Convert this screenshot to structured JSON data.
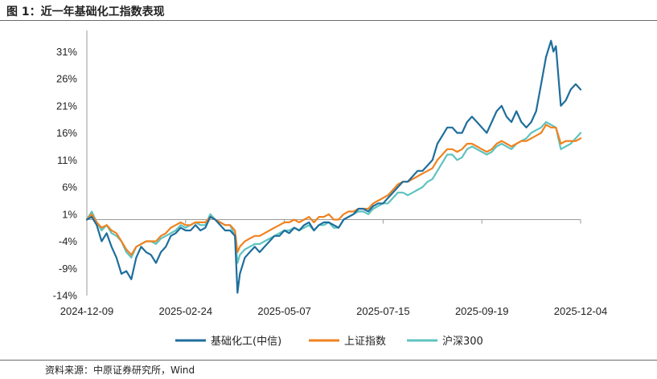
{
  "figure": {
    "title": "图 1：近一年基础化工指数表现",
    "source": "资料来源：中原证券研究所，Wind"
  },
  "chart_data": {
    "type": "line",
    "title": "近一年基础化工指数表现",
    "xlabel": "",
    "ylabel": "",
    "ylim": [
      -14,
      34
    ],
    "yticks": [
      -14,
      -9,
      -4,
      1,
      6,
      11,
      16,
      21,
      26,
      31
    ],
    "ytick_labels": [
      "-14%",
      "-9%",
      "-4%",
      "1%",
      "6%",
      "11%",
      "16%",
      "21%",
      "26%",
      "31%"
    ],
    "x_range": [
      0,
      100
    ],
    "xticks": [
      {
        "x": 0,
        "label": "2024-12-09"
      },
      {
        "x": 20,
        "label": "2025-02-24"
      },
      {
        "x": 40,
        "label": "2025-05-07"
      },
      {
        "x": 60,
        "label": "2025-07-15"
      },
      {
        "x": 80,
        "label": "2025-09-19"
      },
      {
        "x": 100,
        "label": "2025-12-04"
      }
    ],
    "legend_position": "bottom",
    "series": [
      {
        "name": "基础化工(中信)",
        "color": "#1f6e9c",
        "points": [
          [
            0,
            0
          ],
          [
            1,
            0.5
          ],
          [
            2,
            -1
          ],
          [
            3,
            -4
          ],
          [
            4,
            -2.5
          ],
          [
            5,
            -5
          ],
          [
            6,
            -7
          ],
          [
            7,
            -10
          ],
          [
            8,
            -9.5
          ],
          [
            9,
            -11
          ],
          [
            10,
            -7
          ],
          [
            11,
            -5
          ],
          [
            12,
            -6
          ],
          [
            13,
            -6.5
          ],
          [
            14,
            -8
          ],
          [
            15,
            -6
          ],
          [
            16,
            -5
          ],
          [
            17,
            -3
          ],
          [
            18,
            -2.5
          ],
          [
            19,
            -1.5
          ],
          [
            20,
            -2
          ],
          [
            21,
            -2
          ],
          [
            22,
            -1
          ],
          [
            23,
            -2
          ],
          [
            24,
            -1.5
          ],
          [
            25,
            0.5
          ],
          [
            26,
            0
          ],
          [
            27,
            -1
          ],
          [
            28,
            -2
          ],
          [
            29,
            -2
          ],
          [
            30,
            -3
          ],
          [
            30.5,
            -13.5
          ],
          [
            31,
            -10
          ],
          [
            32,
            -7
          ],
          [
            33,
            -6
          ],
          [
            34,
            -5
          ],
          [
            35,
            -6
          ],
          [
            36,
            -5
          ],
          [
            37,
            -4
          ],
          [
            38,
            -3
          ],
          [
            39,
            -3
          ],
          [
            40,
            -2
          ],
          [
            41,
            -2.5
          ],
          [
            42,
            -1.5
          ],
          [
            43,
            -2
          ],
          [
            44,
            -1
          ],
          [
            45,
            -0.5
          ],
          [
            46,
            -2
          ],
          [
            47,
            -1
          ],
          [
            48,
            -0.5
          ],
          [
            49,
            -0.5
          ],
          [
            50,
            -1
          ],
          [
            51,
            -1.5
          ],
          [
            52,
            0
          ],
          [
            53,
            0.5
          ],
          [
            54,
            1
          ],
          [
            55,
            2
          ],
          [
            56,
            2
          ],
          [
            57,
            1.5
          ],
          [
            58,
            2.5
          ],
          [
            59,
            3
          ],
          [
            60,
            3
          ],
          [
            61,
            4
          ],
          [
            62,
            5
          ],
          [
            63,
            6
          ],
          [
            64,
            7
          ],
          [
            65,
            7
          ],
          [
            66,
            8
          ],
          [
            67,
            9
          ],
          [
            68,
            9
          ],
          [
            69,
            10
          ],
          [
            70,
            11
          ],
          [
            71,
            14
          ],
          [
            72,
            15.5
          ],
          [
            73,
            17
          ],
          [
            74,
            17
          ],
          [
            75,
            16
          ],
          [
            76,
            16
          ],
          [
            77,
            18
          ],
          [
            78,
            19
          ],
          [
            79,
            18
          ],
          [
            80,
            17
          ],
          [
            81,
            16
          ],
          [
            82,
            18
          ],
          [
            83,
            20
          ],
          [
            84,
            21
          ],
          [
            85,
            19
          ],
          [
            86,
            18
          ],
          [
            87,
            20
          ],
          [
            88,
            18
          ],
          [
            89,
            17
          ],
          [
            90,
            18
          ],
          [
            91,
            20
          ],
          [
            92,
            25
          ],
          [
            93,
            30
          ],
          [
            94,
            33
          ],
          [
            94.5,
            31
          ],
          [
            95,
            32
          ],
          [
            96,
            21
          ],
          [
            97,
            22
          ],
          [
            98,
            24
          ],
          [
            99,
            25
          ],
          [
            100,
            24
          ]
        ]
      },
      {
        "name": "上证指数",
        "color": "#f0821f",
        "points": [
          [
            0,
            0
          ],
          [
            1,
            1
          ],
          [
            2,
            -0.5
          ],
          [
            3,
            -1.5
          ],
          [
            4,
            -1
          ],
          [
            5,
            -2
          ],
          [
            6,
            -2.5
          ],
          [
            7,
            -4
          ],
          [
            8,
            -5.5
          ],
          [
            9,
            -6.5
          ],
          [
            10,
            -5
          ],
          [
            11,
            -4.5
          ],
          [
            12,
            -4
          ],
          [
            13,
            -4
          ],
          [
            14,
            -4
          ],
          [
            15,
            -3
          ],
          [
            16,
            -2.5
          ],
          [
            17,
            -1.5
          ],
          [
            18,
            -1
          ],
          [
            19,
            -0.5
          ],
          [
            20,
            -1
          ],
          [
            21,
            -1
          ],
          [
            22,
            -0.5
          ],
          [
            23,
            -0.5
          ],
          [
            24,
            -0.5
          ],
          [
            25,
            0.5
          ],
          [
            26,
            0
          ],
          [
            27,
            -0.5
          ],
          [
            28,
            -1
          ],
          [
            29,
            -1
          ],
          [
            30,
            -2
          ],
          [
            30.5,
            -6
          ],
          [
            31,
            -5
          ],
          [
            32,
            -4
          ],
          [
            33,
            -3.5
          ],
          [
            34,
            -3
          ],
          [
            35,
            -3
          ],
          [
            36,
            -2.5
          ],
          [
            37,
            -2
          ],
          [
            38,
            -1.5
          ],
          [
            39,
            -1
          ],
          [
            40,
            -0.5
          ],
          [
            41,
            -0.5
          ],
          [
            42,
            0
          ],
          [
            43,
            -0.5
          ],
          [
            44,
            0
          ],
          [
            45,
            0.5
          ],
          [
            46,
            -0.5
          ],
          [
            47,
            0.5
          ],
          [
            48,
            0.5
          ],
          [
            49,
            1
          ],
          [
            50,
            0
          ],
          [
            51,
            0
          ],
          [
            52,
            1
          ],
          [
            53,
            1.5
          ],
          [
            54,
            1.5
          ],
          [
            55,
            2
          ],
          [
            56,
            2
          ],
          [
            57,
            2
          ],
          [
            58,
            3
          ],
          [
            59,
            3.5
          ],
          [
            60,
            4
          ],
          [
            61,
            4.5
          ],
          [
            62,
            5.5
          ],
          [
            63,
            6.5
          ],
          [
            64,
            7
          ],
          [
            65,
            7
          ],
          [
            66,
            7.5
          ],
          [
            67,
            8
          ],
          [
            68,
            8.5
          ],
          [
            69,
            9
          ],
          [
            70,
            9.5
          ],
          [
            71,
            11
          ],
          [
            72,
            12
          ],
          [
            73,
            13
          ],
          [
            74,
            13
          ],
          [
            75,
            12.5
          ],
          [
            76,
            13
          ],
          [
            77,
            14
          ],
          [
            78,
            14
          ],
          [
            79,
            13.5
          ],
          [
            80,
            13
          ],
          [
            81,
            12.5
          ],
          [
            82,
            13
          ],
          [
            83,
            14
          ],
          [
            84,
            14.5
          ],
          [
            85,
            14
          ],
          [
            86,
            13.5
          ],
          [
            87,
            14
          ],
          [
            88,
            14.5
          ],
          [
            89,
            14.5
          ],
          [
            90,
            15
          ],
          [
            91,
            15.5
          ],
          [
            92,
            16
          ],
          [
            93,
            17.5
          ],
          [
            94,
            17
          ],
          [
            95,
            17
          ],
          [
            96,
            14
          ],
          [
            97,
            14.5
          ],
          [
            98,
            14.5
          ],
          [
            99,
            14.5
          ],
          [
            100,
            15
          ]
        ]
      },
      {
        "name": "沪深300",
        "color": "#5ec3c0",
        "points": [
          [
            0,
            0
          ],
          [
            1,
            1.5
          ],
          [
            2,
            -0.5
          ],
          [
            3,
            -2
          ],
          [
            4,
            -1
          ],
          [
            5,
            -2.5
          ],
          [
            6,
            -3
          ],
          [
            7,
            -4
          ],
          [
            8,
            -6
          ],
          [
            9,
            -7
          ],
          [
            10,
            -5
          ],
          [
            11,
            -4.5
          ],
          [
            12,
            -4
          ],
          [
            13,
            -4
          ],
          [
            14,
            -4.5
          ],
          [
            15,
            -3.5
          ],
          [
            16,
            -3
          ],
          [
            17,
            -2.5
          ],
          [
            18,
            -2
          ],
          [
            19,
            -1
          ],
          [
            20,
            -1.5
          ],
          [
            21,
            -1
          ],
          [
            22,
            -0.5
          ],
          [
            23,
            -1
          ],
          [
            24,
            -1
          ],
          [
            25,
            1
          ],
          [
            26,
            0
          ],
          [
            27,
            -0.5
          ],
          [
            28,
            -1
          ],
          [
            29,
            -1
          ],
          [
            30,
            -3
          ],
          [
            30.5,
            -8
          ],
          [
            31,
            -6.5
          ],
          [
            32,
            -5.5
          ],
          [
            33,
            -5
          ],
          [
            34,
            -4.5
          ],
          [
            35,
            -4.5
          ],
          [
            36,
            -4
          ],
          [
            37,
            -3.5
          ],
          [
            38,
            -3
          ],
          [
            39,
            -2.5
          ],
          [
            40,
            -2
          ],
          [
            41,
            -2
          ],
          [
            42,
            -1.5
          ],
          [
            43,
            -2
          ],
          [
            44,
            -1.5
          ],
          [
            45,
            -1
          ],
          [
            46,
            -2
          ],
          [
            47,
            -1
          ],
          [
            48,
            -1
          ],
          [
            49,
            -0.5
          ],
          [
            50,
            -1.5
          ],
          [
            51,
            -1.5
          ],
          [
            52,
            0
          ],
          [
            53,
            0.5
          ],
          [
            54,
            1
          ],
          [
            55,
            1.5
          ],
          [
            56,
            1.5
          ],
          [
            57,
            1
          ],
          [
            58,
            2
          ],
          [
            59,
            2.5
          ],
          [
            60,
            3
          ],
          [
            61,
            3
          ],
          [
            62,
            4
          ],
          [
            63,
            5
          ],
          [
            64,
            5
          ],
          [
            65,
            4.5
          ],
          [
            66,
            5
          ],
          [
            67,
            5.5
          ],
          [
            68,
            6
          ],
          [
            69,
            7
          ],
          [
            70,
            7.5
          ],
          [
            71,
            9
          ],
          [
            72,
            10.5
          ],
          [
            73,
            12
          ],
          [
            74,
            12
          ],
          [
            75,
            11
          ],
          [
            76,
            11.5
          ],
          [
            77,
            13
          ],
          [
            78,
            13.5
          ],
          [
            79,
            13
          ],
          [
            80,
            12.5
          ],
          [
            81,
            12
          ],
          [
            82,
            12.5
          ],
          [
            83,
            13.5
          ],
          [
            84,
            14
          ],
          [
            85,
            13.5
          ],
          [
            86,
            13
          ],
          [
            87,
            14
          ],
          [
            88,
            14.5
          ],
          [
            89,
            15
          ],
          [
            90,
            16
          ],
          [
            91,
            16.5
          ],
          [
            92,
            17
          ],
          [
            93,
            18
          ],
          [
            94,
            17.5
          ],
          [
            95,
            17
          ],
          [
            96,
            13
          ],
          [
            97,
            13.5
          ],
          [
            98,
            14
          ],
          [
            99,
            15
          ],
          [
            100,
            16
          ]
        ]
      }
    ]
  }
}
